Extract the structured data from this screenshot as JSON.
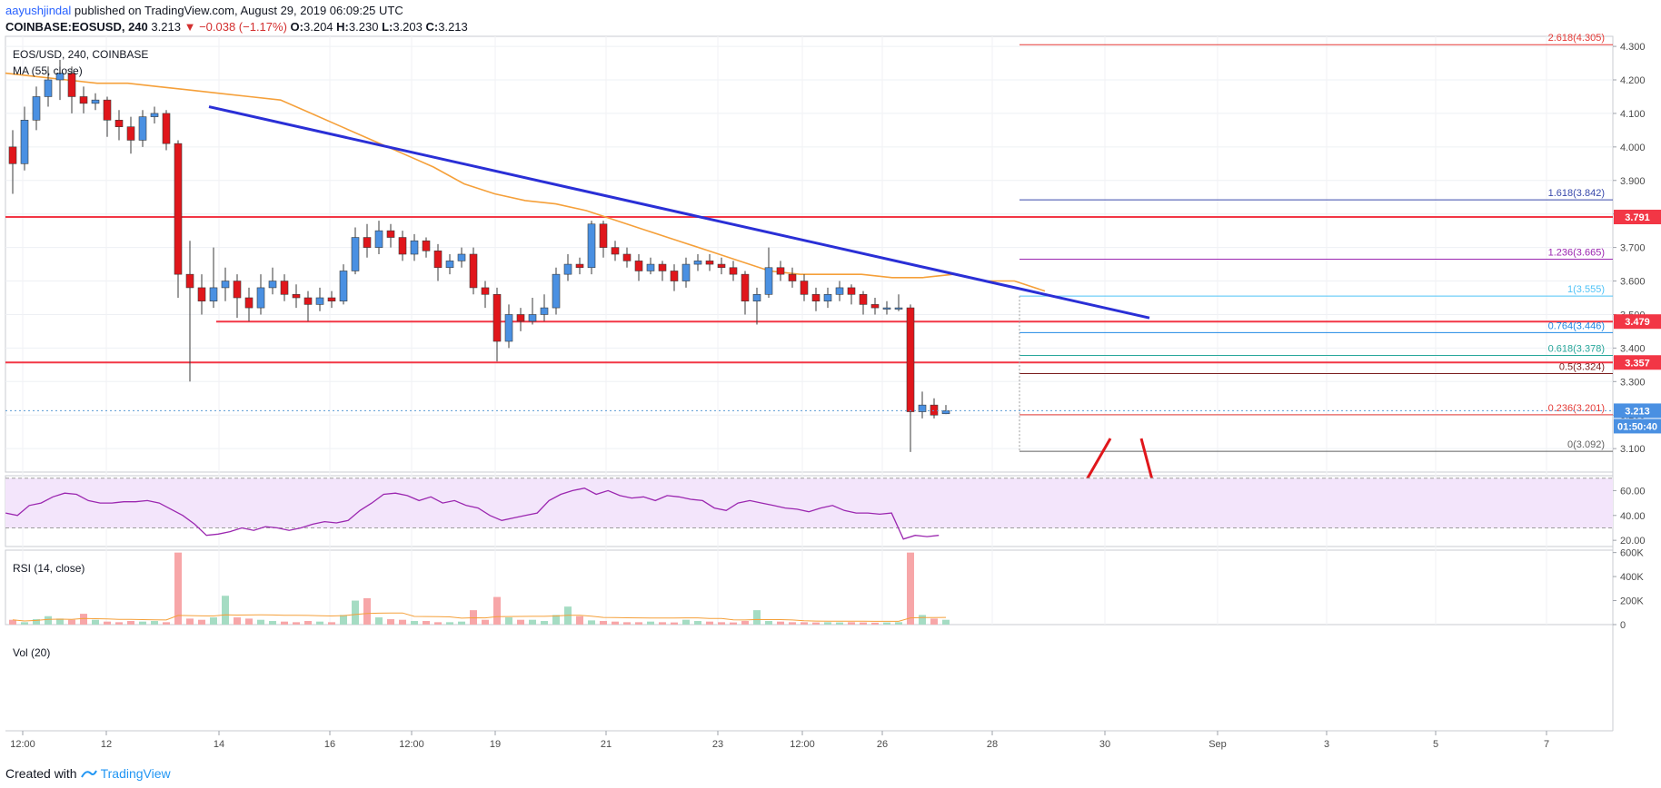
{
  "header": {
    "author": "aayushjindal",
    "published_text": " published on TradingView.com, August 29, 2019 06:09:25 UTC",
    "symbol": "COINBASE:EOSUSD, 240",
    "last": "3.213",
    "change": "−0.038 (−1.17%)",
    "o_label": "O:",
    "o": "3.204",
    "h_label": "H:",
    "h": "3.230",
    "l_label": "L:",
    "l": "3.203",
    "c_label": "C:",
    "c": "3.213"
  },
  "footer": {
    "created_with": "Created with",
    "brand": "TradingView"
  },
  "colors": {
    "up": "#4a90e2",
    "down": "#e0161b",
    "ma": "#f5a03a",
    "trend": "#2a2fd6",
    "support": "#f23645",
    "axis_text": "#4a4a4a",
    "rsi_fill": "#f3e5fb",
    "rsi_line": "#9b27b0",
    "vol_up": "#a5dcc3",
    "vol_down": "#f7a6a8"
  },
  "chart_data": [
    {
      "type": "candlestick",
      "title": "EOS/USD, 240, COINBASE",
      "indicator_label": "MA (55, close)",
      "ylim": [
        3.03,
        4.33
      ],
      "y_ticks": [
        "4.300",
        "4.200",
        "4.100",
        "4.000",
        "3.900",
        "3.800",
        "3.700",
        "3.600",
        "3.500",
        "3.400",
        "3.300",
        "3.200",
        "3.100"
      ],
      "x_ticks": [
        "12:00",
        "12",
        "14",
        "16",
        "12:00",
        "19",
        "21",
        "23",
        "12:00",
        "26",
        "28",
        "30",
        "Sep",
        "3",
        "5",
        "7"
      ],
      "price_labels": [
        {
          "text": "3.791",
          "value": 3.791
        },
        {
          "text": "3.479",
          "value": 3.479
        },
        {
          "text": "3.357",
          "value": 3.357
        },
        {
          "text": "3.213",
          "value": 3.213
        }
      ],
      "countdown": "01:50:40",
      "horizontal_lines": [
        3.791,
        3.479,
        3.357
      ],
      "trendline": [
        {
          "x": "Aug 14 00:00",
          "y": 4.12
        },
        {
          "x": "Aug 30 04:00",
          "y": 3.49
        }
      ],
      "fib_levels": [
        {
          "label": "2.618(4.305)",
          "value": 4.305,
          "color": "#e53935"
        },
        {
          "label": "1.618(3.842)",
          "value": 3.842,
          "color": "#3949ab"
        },
        {
          "label": "1.236(3.665)",
          "value": 3.665,
          "color": "#9c27b0"
        },
        {
          "label": "1(3.555)",
          "value": 3.555,
          "color": "#4fc3f7"
        },
        {
          "label": "0.764(3.446)",
          "value": 3.446,
          "color": "#1e88e5"
        },
        {
          "label": "0.618(3.378)",
          "value": 3.378,
          "color": "#26a69a"
        },
        {
          "label": "0.5(3.324)",
          "value": 3.324,
          "color": "#7b1f1f"
        },
        {
          "label": "0.236(3.201)",
          "value": 3.201,
          "color": "#e53935"
        },
        {
          "label": "0(3.092)",
          "value": 3.092,
          "color": "#616161"
        }
      ],
      "ma_points": [
        4.22,
        4.21,
        4.2,
        4.19,
        4.19,
        4.18,
        4.17,
        4.16,
        4.15,
        4.14,
        4.1,
        4.06,
        4.02,
        3.98,
        3.94,
        3.89,
        3.86,
        3.84,
        3.83,
        3.81,
        3.78,
        3.75,
        3.72,
        3.69,
        3.66,
        3.63,
        3.62,
        3.62,
        3.62,
        3.61,
        3.61,
        3.62,
        3.6,
        3.6,
        3.57
      ],
      "candles": [
        [
          4.0,
          3.95,
          4.05,
          3.86
        ],
        [
          3.95,
          4.08,
          4.12,
          3.93
        ],
        [
          4.08,
          4.15,
          4.18,
          4.05
        ],
        [
          4.15,
          4.2,
          4.24,
          4.12
        ],
        [
          4.2,
          4.22,
          4.26,
          4.14
        ],
        [
          4.22,
          4.15,
          4.24,
          4.1
        ],
        [
          4.15,
          4.13,
          4.18,
          4.1
        ],
        [
          4.13,
          4.14,
          4.16,
          4.11
        ],
        [
          4.14,
          4.08,
          4.15,
          4.03
        ],
        [
          4.08,
          4.06,
          4.11,
          4.02
        ],
        [
          4.06,
          4.02,
          4.09,
          3.98
        ],
        [
          4.02,
          4.09,
          4.11,
          4.0
        ],
        [
          4.09,
          4.1,
          4.12,
          4.07
        ],
        [
          4.1,
          4.01,
          4.11,
          3.99
        ],
        [
          4.01,
          3.62,
          4.02,
          3.55
        ],
        [
          3.62,
          3.58,
          3.72,
          3.3
        ],
        [
          3.58,
          3.54,
          3.62,
          3.5
        ],
        [
          3.54,
          3.58,
          3.7,
          3.52
        ],
        [
          3.58,
          3.6,
          3.64,
          3.54
        ],
        [
          3.6,
          3.55,
          3.62,
          3.49
        ],
        [
          3.55,
          3.52,
          3.58,
          3.48
        ],
        [
          3.52,
          3.58,
          3.62,
          3.5
        ],
        [
          3.58,
          3.6,
          3.64,
          3.56
        ],
        [
          3.6,
          3.56,
          3.62,
          3.54
        ],
        [
          3.56,
          3.55,
          3.59,
          3.52
        ],
        [
          3.55,
          3.53,
          3.57,
          3.48
        ],
        [
          3.53,
          3.55,
          3.58,
          3.51
        ],
        [
          3.55,
          3.54,
          3.57,
          3.52
        ],
        [
          3.54,
          3.63,
          3.65,
          3.53
        ],
        [
          3.63,
          3.73,
          3.76,
          3.62
        ],
        [
          3.73,
          3.7,
          3.77,
          3.67
        ],
        [
          3.7,
          3.75,
          3.78,
          3.68
        ],
        [
          3.75,
          3.73,
          3.77,
          3.7
        ],
        [
          3.73,
          3.68,
          3.75,
          3.66
        ],
        [
          3.68,
          3.72,
          3.74,
          3.66
        ],
        [
          3.72,
          3.69,
          3.73,
          3.67
        ],
        [
          3.69,
          3.64,
          3.71,
          3.6
        ],
        [
          3.64,
          3.66,
          3.68,
          3.62
        ],
        [
          3.66,
          3.68,
          3.7,
          3.64
        ],
        [
          3.68,
          3.58,
          3.7,
          3.56
        ],
        [
          3.58,
          3.56,
          3.6,
          3.52
        ],
        [
          3.56,
          3.42,
          3.58,
          3.36
        ],
        [
          3.42,
          3.5,
          3.53,
          3.4
        ],
        [
          3.5,
          3.48,
          3.52,
          3.45
        ],
        [
          3.48,
          3.5,
          3.55,
          3.47
        ],
        [
          3.5,
          3.52,
          3.56,
          3.48
        ],
        [
          3.52,
          3.62,
          3.64,
          3.5
        ],
        [
          3.62,
          3.65,
          3.68,
          3.6
        ],
        [
          3.65,
          3.64,
          3.67,
          3.62
        ],
        [
          3.64,
          3.77,
          3.78,
          3.62
        ],
        [
          3.77,
          3.7,
          3.78,
          3.67
        ],
        [
          3.7,
          3.68,
          3.72,
          3.66
        ],
        [
          3.68,
          3.66,
          3.7,
          3.64
        ],
        [
          3.66,
          3.63,
          3.68,
          3.6
        ],
        [
          3.63,
          3.65,
          3.67,
          3.62
        ],
        [
          3.65,
          3.63,
          3.66,
          3.6
        ],
        [
          3.63,
          3.6,
          3.65,
          3.57
        ],
        [
          3.6,
          3.65,
          3.67,
          3.58
        ],
        [
          3.65,
          3.66,
          3.68,
          3.63
        ],
        [
          3.66,
          3.65,
          3.68,
          3.63
        ],
        [
          3.65,
          3.64,
          3.67,
          3.62
        ],
        [
          3.64,
          3.62,
          3.66,
          3.6
        ],
        [
          3.62,
          3.54,
          3.63,
          3.5
        ],
        [
          3.54,
          3.56,
          3.58,
          3.47
        ],
        [
          3.56,
          3.64,
          3.7,
          3.55
        ],
        [
          3.64,
          3.62,
          3.66,
          3.6
        ],
        [
          3.62,
          3.6,
          3.64,
          3.58
        ],
        [
          3.6,
          3.56,
          3.62,
          3.54
        ],
        [
          3.56,
          3.54,
          3.58,
          3.51
        ],
        [
          3.54,
          3.56,
          3.58,
          3.52
        ],
        [
          3.56,
          3.58,
          3.6,
          3.54
        ],
        [
          3.58,
          3.56,
          3.59,
          3.53
        ],
        [
          3.56,
          3.53,
          3.57,
          3.5
        ],
        [
          3.53,
          3.52,
          3.55,
          3.5
        ],
        [
          3.52,
          3.52,
          3.54,
          3.5
        ],
        [
          3.52,
          3.52,
          3.56,
          3.51
        ],
        [
          3.52,
          3.21,
          3.53,
          3.09
        ],
        [
          3.21,
          3.23,
          3.27,
          3.19
        ],
        [
          3.23,
          3.2,
          3.25,
          3.19
        ],
        [
          3.204,
          3.213,
          3.23,
          3.203
        ]
      ]
    },
    {
      "type": "line",
      "title": "RSI (14, close)",
      "ylim": [
        15,
        72
      ],
      "y_ticks": [
        "60.00",
        "40.00",
        "20.00"
      ],
      "bands": [
        30,
        70
      ],
      "values": [
        42,
        40,
        48,
        50,
        55,
        58,
        57,
        52,
        50,
        50,
        51,
        51,
        52,
        50,
        45,
        40,
        33,
        24,
        25,
        27,
        30,
        28,
        31,
        30,
        28,
        30,
        33,
        35,
        34,
        36,
        44,
        50,
        57,
        58,
        56,
        52,
        55,
        50,
        52,
        48,
        46,
        40,
        36,
        38,
        40,
        42,
        52,
        57,
        60,
        62,
        57,
        60,
        56,
        54,
        55,
        52,
        56,
        55,
        53,
        52,
        46,
        44,
        50,
        52,
        50,
        48,
        46,
        45,
        43,
        46,
        48,
        44,
        42,
        42,
        41,
        42,
        21,
        24,
        23,
        24
      ]
    },
    {
      "type": "bar",
      "title": "Vol (20)",
      "ylim": [
        0,
        620000
      ],
      "y_ticks": [
        "600K",
        "400K",
        "200K",
        "0"
      ],
      "values": [
        40000,
        20000,
        45000,
        70000,
        50000,
        40000,
        90000,
        40000,
        25000,
        20000,
        30000,
        25000,
        30000,
        20000,
        600000,
        50000,
        40000,
        60000,
        240000,
        60000,
        50000,
        40000,
        30000,
        25000,
        20000,
        30000,
        25000,
        20000,
        80000,
        200000,
        220000,
        60000,
        45000,
        40000,
        30000,
        30000,
        20000,
        20000,
        25000,
        120000,
        40000,
        230000,
        60000,
        40000,
        40000,
        30000,
        80000,
        150000,
        70000,
        35000,
        30000,
        25000,
        20000,
        20000,
        25000,
        20000,
        18000,
        40000,
        30000,
        25000,
        20000,
        18000,
        30000,
        120000,
        30000,
        25000,
        20000,
        20000,
        18000,
        20000,
        18000,
        20000,
        18000,
        16000,
        18000,
        20000,
        600000,
        80000,
        50000,
        40000
      ]
    }
  ]
}
